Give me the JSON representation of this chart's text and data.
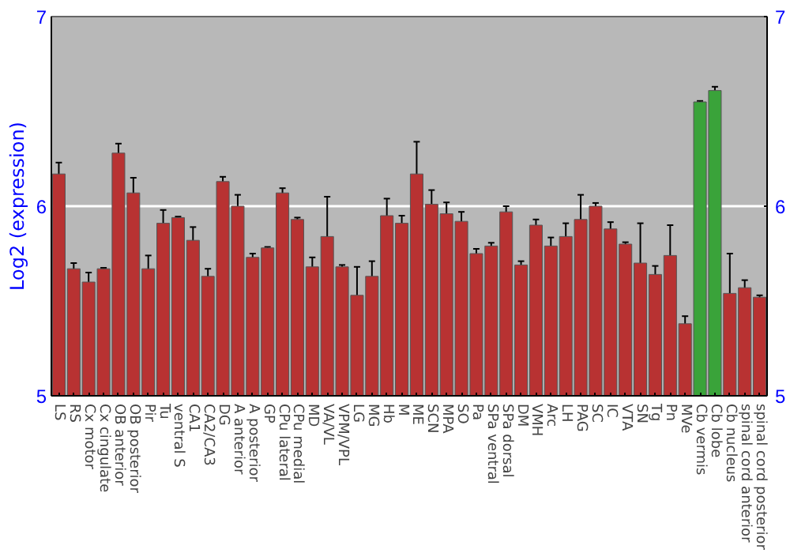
{
  "chart_data": {
    "type": "bar",
    "ylabel": "Log2 (expression)",
    "categories": [
      "LS",
      "RS",
      "Cx motor",
      "Cx cingulate",
      "OB anterior",
      "OB posterior",
      "Pir",
      "Tu",
      "ventral S",
      "CA1",
      "CA2/CA3",
      "DG",
      "A anterior",
      "A posterior",
      "GP",
      "CPu lateral",
      "CPu medial",
      "MD",
      "VA/VL",
      "VPM/VPL",
      "LG",
      "MG",
      "Hb",
      "M",
      "ME",
      "SCN",
      "MPA",
      "SO",
      "Pa",
      "SPa ventral",
      "SPa dorsal",
      "DM",
      "VMH",
      "Arc",
      "LH",
      "PAG",
      "SC",
      "IC",
      "VTA",
      "SN",
      "Tg",
      "Pn",
      "MVe",
      "Cb vermis",
      "Cb lobe",
      "Cb nucleus",
      "spinal cord anterior",
      "spinal cord posterior"
    ],
    "values": [
      6.17,
      5.67,
      5.6,
      5.67,
      6.28,
      6.07,
      5.67,
      5.91,
      5.94,
      5.82,
      5.63,
      6.13,
      6.0,
      5.73,
      5.78,
      6.07,
      5.93,
      5.68,
      5.84,
      5.68,
      5.53,
      5.63,
      5.95,
      5.91,
      6.17,
      6.01,
      5.96,
      5.92,
      5.75,
      5.79,
      5.97,
      5.69,
      5.9,
      5.79,
      5.84,
      5.93,
      6.0,
      5.88,
      5.8,
      5.7,
      5.64,
      5.74,
      5.38,
      6.55,
      6.61,
      5.54,
      5.57,
      5.52
    ],
    "errors": [
      0.06,
      0.03,
      0.05,
      0.005,
      0.05,
      0.08,
      0.07,
      0.07,
      0.005,
      0.07,
      0.04,
      0.025,
      0.06,
      0.02,
      0.005,
      0.025,
      0.01,
      0.05,
      0.21,
      0.01,
      0.15,
      0.08,
      0.09,
      0.04,
      0.17,
      0.075,
      0.06,
      0.05,
      0.025,
      0.017,
      0.03,
      0.02,
      0.03,
      0.045,
      0.07,
      0.13,
      0.017,
      0.036,
      0.01,
      0.21,
      0.045,
      0.16,
      0.04,
      0.005,
      0.02,
      0.21,
      0.04,
      0.01
    ],
    "colors": [
      "#b83232",
      "#b83232",
      "#b83232",
      "#b83232",
      "#b83232",
      "#b83232",
      "#b83232",
      "#b83232",
      "#b83232",
      "#b83232",
      "#b83232",
      "#b83232",
      "#b83232",
      "#b83232",
      "#b83232",
      "#b83232",
      "#b83232",
      "#b83232",
      "#b83232",
      "#b83232",
      "#b83232",
      "#b83232",
      "#b83232",
      "#b83232",
      "#b83232",
      "#b83232",
      "#b83232",
      "#b83232",
      "#b83232",
      "#b83232",
      "#b83232",
      "#b83232",
      "#b83232",
      "#b83232",
      "#b83232",
      "#b83232",
      "#b83232",
      "#b83232",
      "#b83232",
      "#b83232",
      "#b83232",
      "#b83232",
      "#b83232",
      "#3aa33a",
      "#3aa33a",
      "#b83232",
      "#b83232",
      "#b83232"
    ],
    "ylim": [
      5,
      7
    ],
    "yticks": [
      5,
      6,
      7
    ],
    "y2lim": [
      5,
      7
    ],
    "y2ticks": [
      5,
      6,
      7
    ],
    "grid": "y"
  }
}
